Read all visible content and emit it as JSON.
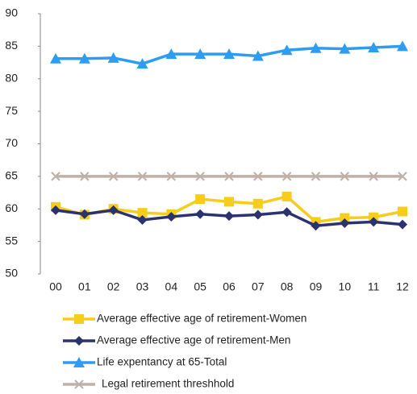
{
  "chart_data": {
    "type": "line",
    "categories": [
      "00",
      "01",
      "02",
      "03",
      "04",
      "05",
      "06",
      "07",
      "08",
      "09",
      "10",
      "11",
      "12"
    ],
    "ylim": [
      50,
      90
    ],
    "yticks": [
      50,
      55,
      60,
      65,
      70,
      75,
      80,
      85,
      90
    ],
    "grid": false,
    "legend": "bottom",
    "series": [
      {
        "name": "Average effective age of retirement-Women",
        "color": "#f7cd1b",
        "marker": "square",
        "values": [
          60.3,
          59.1,
          60.0,
          59.4,
          59.2,
          61.5,
          61.1,
          60.8,
          61.9,
          58.0,
          58.6,
          58.7,
          59.6
        ]
      },
      {
        "name": "Average effective age of retirement-Men",
        "color": "#2b3270",
        "marker": "diamond",
        "values": [
          59.8,
          59.2,
          59.8,
          58.3,
          58.8,
          59.2,
          58.9,
          59.1,
          59.5,
          57.4,
          57.8,
          58.0,
          57.6
        ]
      },
      {
        "name": "Life expentancy at 65-Total",
        "color": "#2f9cf3",
        "marker": "triangle",
        "values": [
          83.1,
          83.1,
          83.2,
          82.3,
          83.8,
          83.8,
          83.8,
          83.5,
          84.4,
          84.7,
          84.6,
          84.8,
          85.0
        ]
      },
      {
        "name": "Legal retirement threshhold",
        "color": "#bfb0a8",
        "marker": "x",
        "values": [
          65,
          65,
          65,
          65,
          65,
          65,
          65,
          65,
          65,
          65,
          65,
          65,
          65
        ]
      }
    ]
  }
}
